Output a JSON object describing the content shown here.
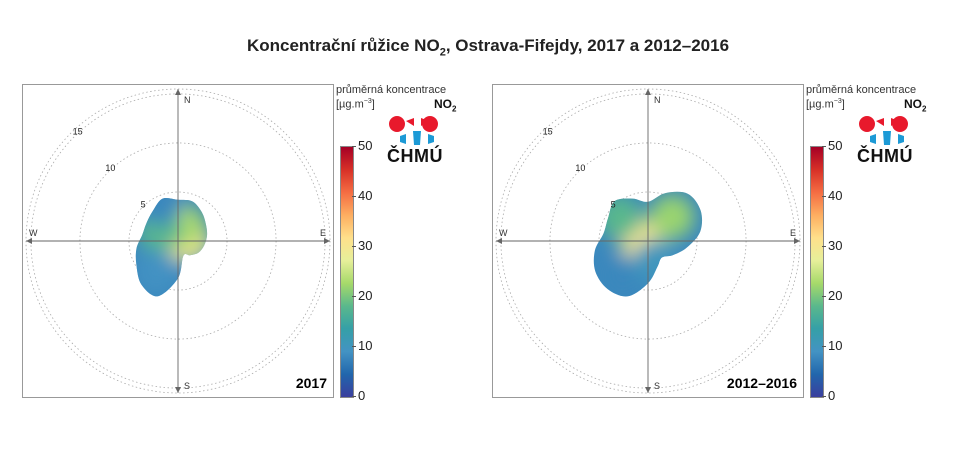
{
  "title": {
    "pre": "Koncentrační růžice NO",
    "sub": "2",
    "post": ", Ostrava-Fifejdy, 2017 a 2012–2016"
  },
  "chart_data": [
    {
      "type": "heatmap",
      "subtype": "polar-concentration-rose",
      "label": "2017",
      "directions": [
        "N",
        "E",
        "S",
        "W"
      ],
      "radial_ticks": [
        5,
        10,
        15
      ],
      "radial_max": 15.5,
      "color_scale": {
        "min": 0,
        "max": 50,
        "ticks": [
          0,
          10,
          20,
          30,
          40,
          50
        ]
      },
      "shape": {
        "angles_deg": [
          0,
          20,
          40,
          60,
          80,
          100,
          120,
          140,
          160,
          180,
          200,
          220,
          240,
          260,
          280,
          300,
          320,
          340
        ],
        "extent": [
          4.2,
          4.3,
          3.8,
          3.3,
          3.0,
          2.7,
          2.4,
          1.9,
          1.6,
          3.8,
          6.0,
          5.8,
          4.9,
          4.3,
          3.7,
          3.7,
          4.0,
          4.6
        ]
      },
      "hotspot_values": [
        {
          "angle_deg": 85,
          "distance": 1.0,
          "value": 30
        },
        {
          "angle_deg": 20,
          "distance": 1.6,
          "value": 23
        },
        {
          "angle_deg": 300,
          "distance": 2.2,
          "value": 18
        },
        {
          "angle_deg": 215,
          "distance": 3.8,
          "value": 9
        },
        {
          "angle_deg": 335,
          "distance": 4.2,
          "value": 8
        }
      ]
    },
    {
      "type": "heatmap",
      "subtype": "polar-concentration-rose",
      "label": "2012–2016",
      "directions": [
        "N",
        "E",
        "S",
        "W"
      ],
      "radial_ticks": [
        5,
        10,
        15
      ],
      "radial_max": 15.5,
      "color_scale": {
        "min": 0,
        "max": 50,
        "ticks": [
          0,
          10,
          20,
          30,
          40,
          50
        ]
      },
      "shape": {
        "angles_deg": [
          0,
          20,
          40,
          60,
          80,
          100,
          120,
          140,
          160,
          180,
          200,
          220,
          240,
          260,
          280,
          300,
          320,
          340
        ],
        "extent": [
          4.0,
          5.2,
          6.3,
          6.2,
          5.4,
          4.0,
          2.9,
          2.2,
          2.8,
          4.3,
          6.0,
          6.4,
          6.2,
          5.5,
          4.6,
          4.7,
          5.3,
          4.6
        ]
      },
      "hotspot_values": [
        {
          "angle_deg": 270,
          "distance": 0.6,
          "value": 30
        },
        {
          "angle_deg": 45,
          "distance": 3.5,
          "value": 22
        },
        {
          "angle_deg": 310,
          "distance": 3.8,
          "value": 18
        },
        {
          "angle_deg": 215,
          "distance": 4.5,
          "value": 8
        },
        {
          "angle_deg": 160,
          "distance": 2.2,
          "value": 10
        }
      ]
    }
  ],
  "legend": {
    "title": "průměrná koncentrace",
    "units_pre": "[µg.m",
    "units_sup": "−3",
    "units_post": "]",
    "pollutant_pre": "NO",
    "pollutant_sub": "2",
    "tick_labels": [
      "50",
      "40",
      "30",
      "20",
      "10",
      "0"
    ]
  },
  "logo": {
    "text": "ČHMÚ",
    "colors": {
      "red": "#e8192c",
      "blue": "#1c9ad6"
    }
  },
  "colors": {
    "axis": "#666666",
    "circle": "#aaaaaa",
    "colormap": [
      "#3b3f9e",
      "#2166ac",
      "#4393c3",
      "#35a0a7",
      "#5ab88c",
      "#a6d96a",
      "#e6ef9a",
      "#fee08b",
      "#fdae61",
      "#f46d43",
      "#d73027",
      "#a50026"
    ]
  }
}
